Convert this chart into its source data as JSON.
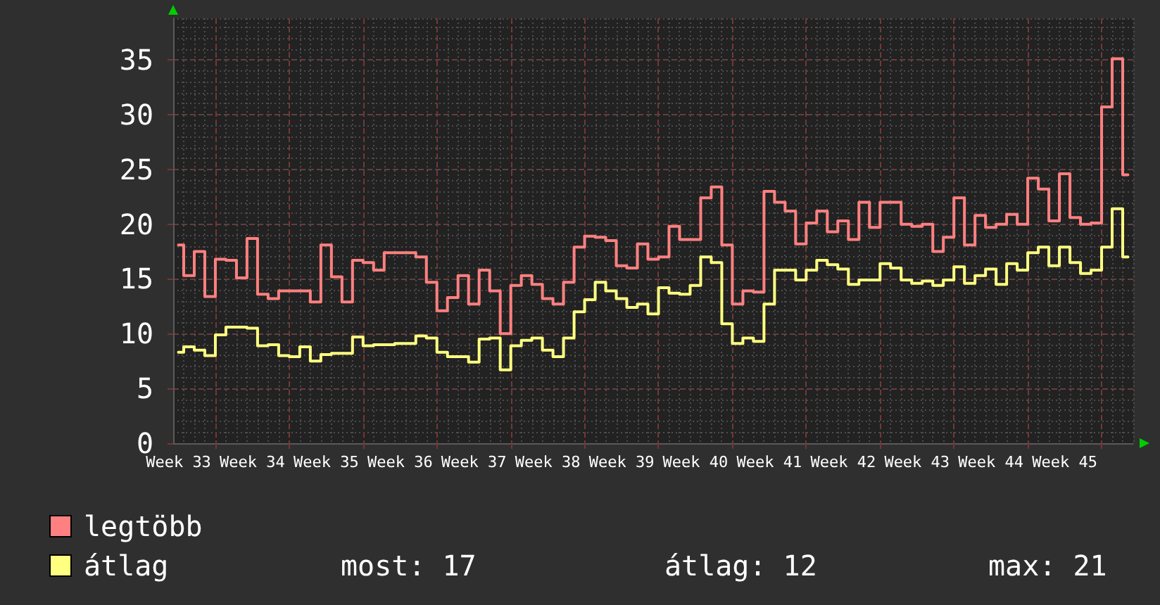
{
  "chart_data": {
    "type": "step",
    "categories": [
      "Week 33",
      null,
      null,
      null,
      null,
      null,
      null,
      "Week 34",
      null,
      null,
      null,
      null,
      null,
      null,
      "Week 35",
      null,
      null,
      null,
      null,
      null,
      null,
      "Week 36",
      null,
      null,
      null,
      null,
      null,
      null,
      "Week 37",
      null,
      null,
      null,
      null,
      null,
      null,
      "Week 38",
      null,
      null,
      null,
      null,
      null,
      null,
      "Week 39",
      null,
      null,
      null,
      null,
      null,
      null,
      "Week 40",
      null,
      null,
      null,
      null,
      null,
      null,
      "Week 41",
      null,
      null,
      null,
      null,
      null,
      null,
      "Week 42",
      null,
      null,
      null,
      null,
      null,
      null,
      "Week 43",
      null,
      null,
      null,
      null,
      null,
      null,
      "Week 44",
      null,
      null,
      null,
      null,
      null,
      null,
      "Week 45",
      null,
      null,
      null,
      null,
      null,
      null
    ],
    "series": [
      {
        "name": "legtöbb",
        "color": "#ff8080",
        "values": [
          18.1,
          15.3,
          17.5,
          13.4,
          16.8,
          16.7,
          15.1,
          18.7,
          13.6,
          13.2,
          13.9,
          13.9,
          13.9,
          12.9,
          18.1,
          15.2,
          12.9,
          16.7,
          16.5,
          15.8,
          17.4,
          17.4,
          17.4,
          17.0,
          14.7,
          12.1,
          13.3,
          15.3,
          12.7,
          15.8,
          13.9,
          10.0,
          14.4,
          15.3,
          14.5,
          13.2,
          12.7,
          14.7,
          17.9,
          18.9,
          18.8,
          18.5,
          16.2,
          16.0,
          18.2,
          16.8,
          17.0,
          19.8,
          18.6,
          18.6,
          22.4,
          23.4,
          18.1,
          12.7,
          13.9,
          13.8,
          23.0,
          22.0,
          21.2,
          18.2,
          20.1,
          21.2,
          19.3,
          20.3,
          18.6,
          22.0,
          19.7,
          22.0,
          22.0,
          20.0,
          19.8,
          20.0,
          17.5,
          18.8,
          22.4,
          18.1,
          20.8,
          19.7,
          20.0,
          20.9,
          20.0,
          24.2,
          23.2,
          20.3,
          24.6,
          20.6,
          20.0,
          20.1,
          30.7,
          35.1,
          24.5
        ]
      },
      {
        "name": "átlag",
        "color": "#ffff80",
        "values": [
          8.3,
          8.8,
          8.5,
          8.0,
          9.9,
          10.6,
          10.6,
          10.5,
          8.9,
          9.0,
          8.0,
          7.9,
          8.8,
          7.5,
          8.1,
          8.2,
          8.2,
          9.7,
          8.9,
          9.0,
          9.0,
          9.1,
          9.1,
          9.8,
          9.6,
          8.3,
          7.9,
          7.9,
          7.4,
          9.5,
          9.6,
          6.7,
          8.9,
          9.4,
          9.6,
          8.5,
          7.9,
          9.6,
          12.0,
          13.1,
          14.7,
          13.9,
          13.2,
          12.4,
          12.7,
          11.8,
          14.2,
          13.7,
          13.6,
          14.4,
          17.0,
          16.5,
          10.9,
          9.1,
          9.6,
          9.3,
          12.7,
          15.8,
          15.8,
          14.9,
          15.8,
          16.7,
          16.3,
          15.9,
          14.5,
          14.9,
          14.9,
          16.4,
          16.0,
          14.9,
          14.6,
          14.8,
          14.4,
          14.9,
          16.1,
          14.6,
          15.3,
          15.9,
          14.5,
          16.4,
          15.8,
          17.4,
          17.9,
          16.2,
          17.9,
          16.5,
          15.5,
          15.8,
          17.9,
          21.4,
          17.0
        ]
      }
    ],
    "ylim": [
      0,
      38.8
    ],
    "yticks": [
      0,
      5,
      10,
      15,
      20,
      25,
      30,
      35
    ],
    "grid": true,
    "legend": "bottom left",
    "marker": "none",
    "line_style": "solid",
    "annotations": [
      "most: 17",
      "átlag: 12",
      "max: 21"
    ]
  }
}
